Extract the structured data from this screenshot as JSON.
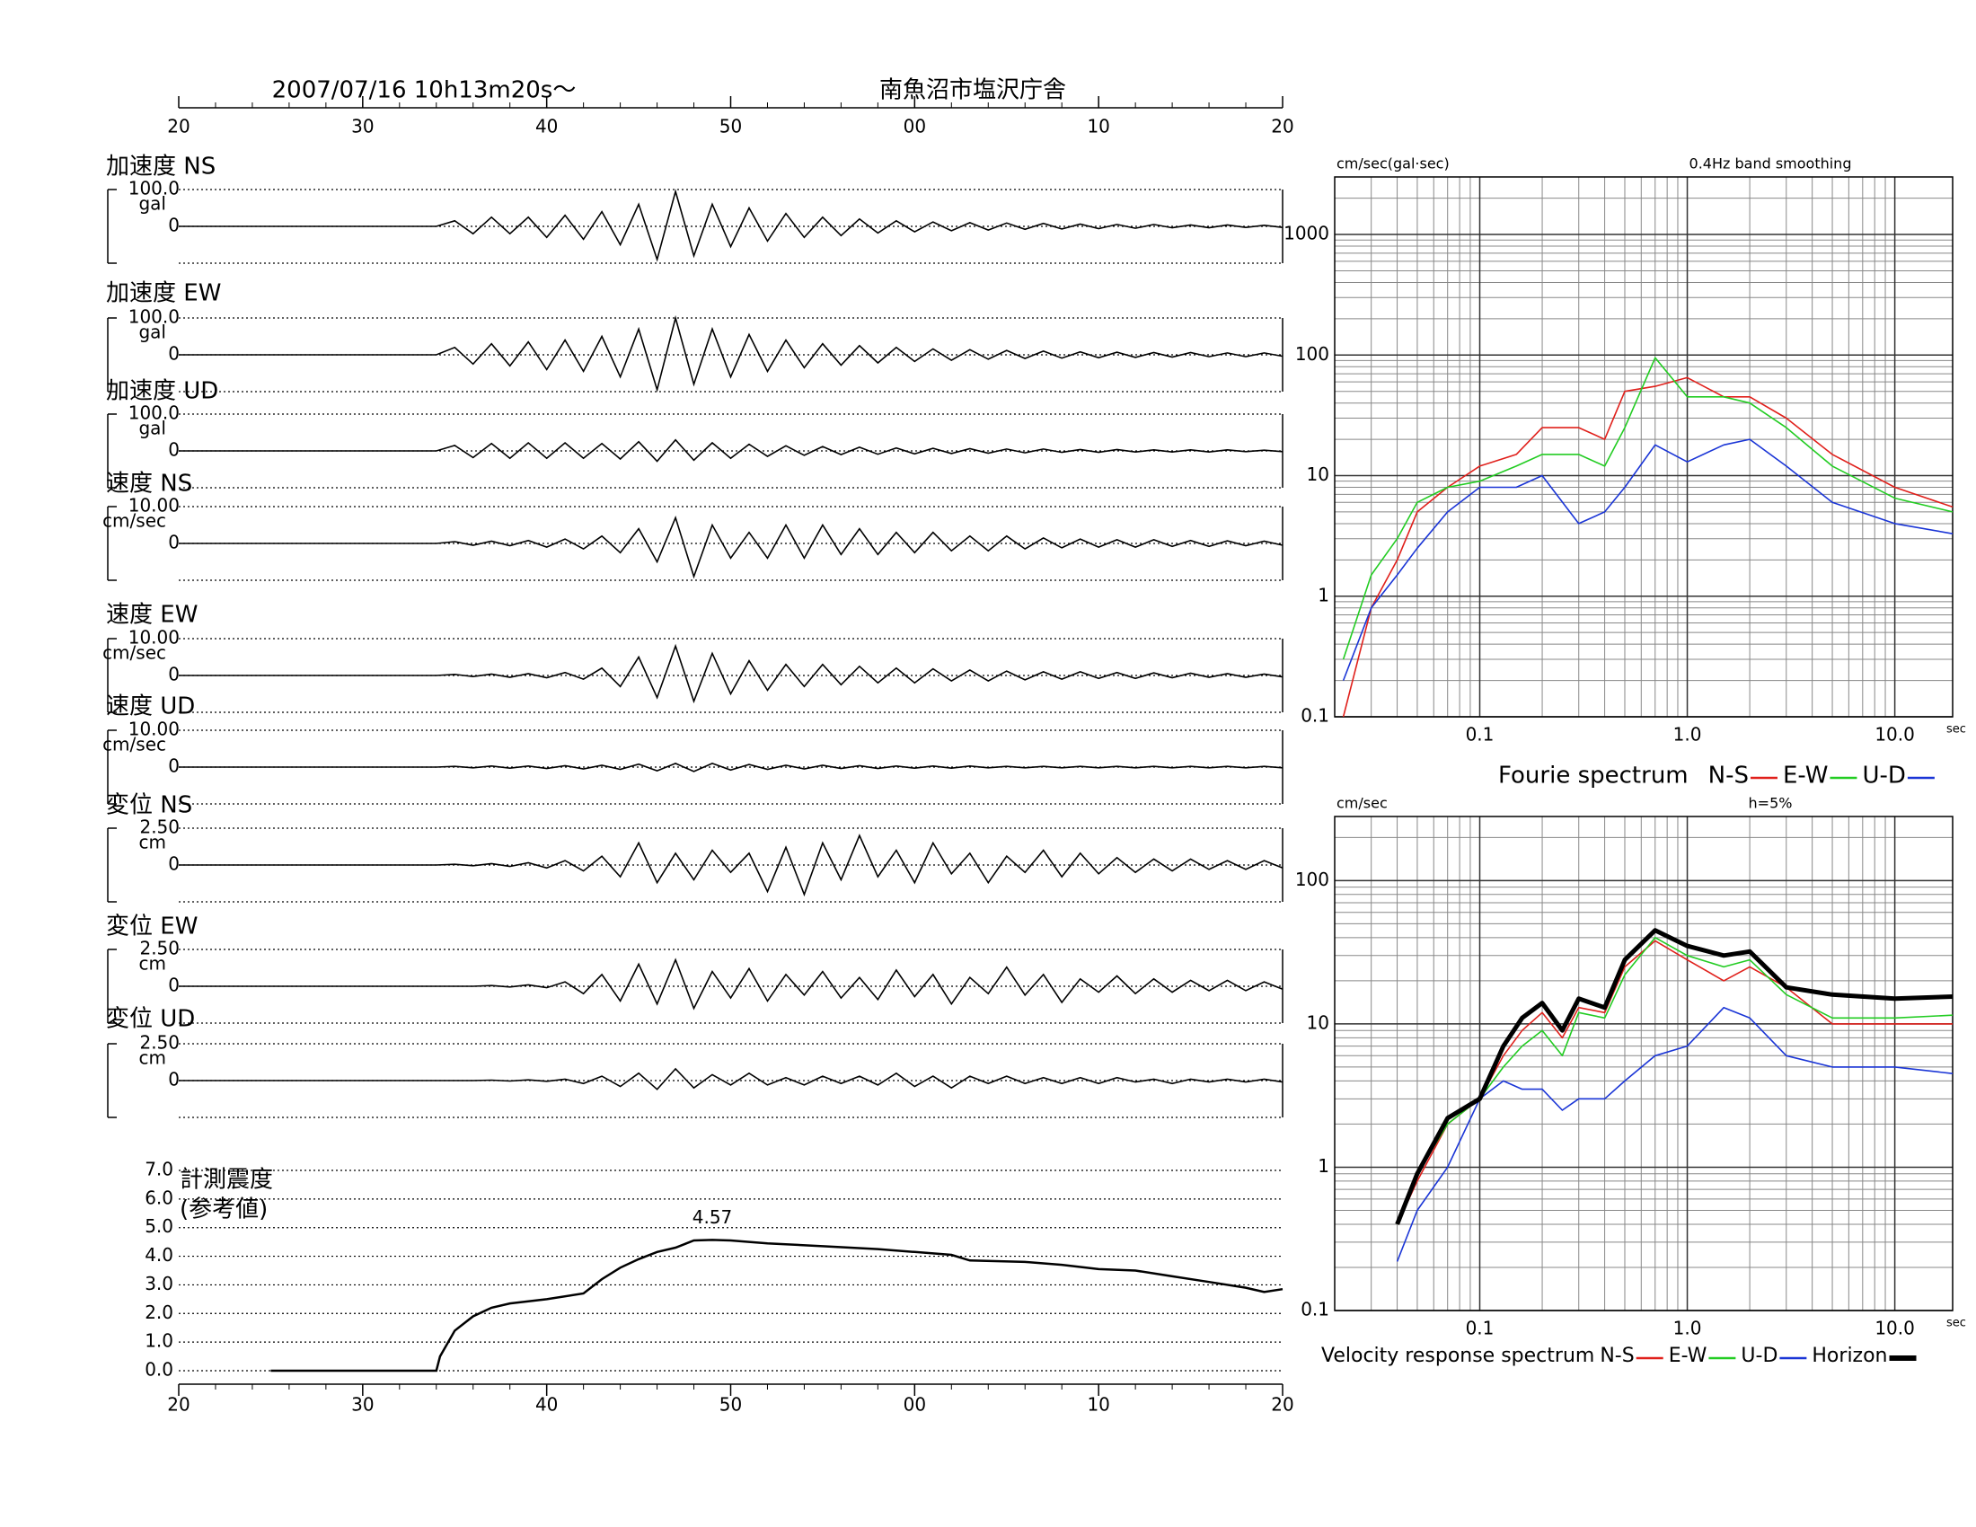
{
  "chart_data": [
    {
      "type": "line",
      "title": "2007/07/16  10h13m20s〜",
      "subtitle": "南魚沼市塩沢庁舎",
      "xlim": [
        20,
        80
      ],
      "xticks": [
        20,
        30,
        40,
        50,
        {
          "value": 60,
          "label": "00"
        },
        {
          "value": 70,
          "label": "10"
        },
        {
          "value": 80,
          "label": "20"
        }
      ],
      "x": [
        20,
        34,
        35,
        36,
        37,
        38,
        39,
        40,
        41,
        42,
        43,
        44,
        45,
        46,
        47,
        48,
        49,
        50,
        51,
        52,
        53,
        54,
        55,
        56,
        57,
        58,
        59,
        60,
        61,
        62,
        63,
        64,
        65,
        66,
        67,
        68,
        69,
        70,
        71,
        72,
        73,
        74,
        75,
        76,
        77,
        78,
        79,
        80
      ],
      "series": [
        {
          "name": "加速度 NS",
          "unit": "gal",
          "color": "#000",
          "ylim": [
            -100,
            100
          ],
          "yticks": [
            {
              "value": 100,
              "label": "100.0"
            },
            0
          ],
          "values": [
            0,
            0,
            15,
            -20,
            25,
            -20,
            25,
            -30,
            30,
            -35,
            40,
            -50,
            60,
            -90,
            95,
            -80,
            60,
            -55,
            50,
            -40,
            35,
            -30,
            25,
            -25,
            20,
            -18,
            15,
            -15,
            12,
            -12,
            10,
            -10,
            9,
            -8,
            8,
            -7,
            6,
            -6,
            5,
            -5,
            5,
            -4,
            4,
            -4,
            4,
            -3,
            3,
            -3
          ]
        },
        {
          "name": "加速度 EW",
          "unit": "gal",
          "color": "#000",
          "ylim": [
            -100,
            100
          ],
          "yticks": [
            {
              "value": 100,
              "label": "100.0"
            },
            0
          ],
          "values": [
            0,
            0,
            20,
            -25,
            30,
            -30,
            35,
            -40,
            40,
            -45,
            50,
            -60,
            70,
            -95,
            100,
            -80,
            70,
            -60,
            55,
            -45,
            40,
            -35,
            30,
            -28,
            25,
            -22,
            20,
            -18,
            16,
            -15,
            14,
            -12,
            12,
            -10,
            10,
            -9,
            8,
            -8,
            7,
            -7,
            6,
            -6,
            6,
            -5,
            5,
            -5,
            5,
            -4
          ]
        },
        {
          "name": "加速度 UD",
          "unit": "gal",
          "color": "#000",
          "ylim": [
            -100,
            100
          ],
          "yticks": [
            {
              "value": 100,
              "label": "100.0"
            },
            0
          ],
          "values": [
            0,
            0,
            15,
            -18,
            20,
            -20,
            22,
            -20,
            22,
            -20,
            20,
            -22,
            25,
            -28,
            30,
            -25,
            22,
            -20,
            18,
            -15,
            14,
            -12,
            12,
            -10,
            10,
            -9,
            8,
            -8,
            7,
            -7,
            6,
            -6,
            5,
            -5,
            5,
            -4,
            4,
            -4,
            4,
            -3,
            3,
            -3,
            3,
            -3,
            3,
            -2,
            2,
            -2
          ]
        },
        {
          "name": "速度 NS",
          "unit": "cm/sec",
          "color": "#000",
          "ylim": [
            -10,
            10
          ],
          "yticks": [
            {
              "value": 10,
              "label": "10.00"
            },
            0
          ],
          "values": [
            0,
            0,
            0.5,
            -0.5,
            0.6,
            -0.6,
            0.8,
            -1,
            1.2,
            -1.5,
            2,
            -2.5,
            4,
            -5,
            7,
            -9,
            5,
            -4,
            3,
            -4,
            5,
            -4,
            5,
            -3,
            4,
            -3,
            3,
            -2.5,
            3,
            -2,
            2,
            -2,
            2,
            -1.5,
            1.5,
            -1.2,
            1.2,
            -1,
            1,
            -1,
            1,
            -0.8,
            0.8,
            -0.8,
            0.7,
            -0.6,
            0.6,
            -0.5
          ]
        },
        {
          "name": "速度 EW",
          "unit": "cm/sec",
          "color": "#000",
          "ylim": [
            -10,
            10
          ],
          "yticks": [
            {
              "value": 10,
              "label": "10.00"
            },
            0
          ],
          "values": [
            0,
            0,
            0.3,
            -0.3,
            0.4,
            -0.5,
            0.5,
            -0.6,
            0.8,
            -1,
            2,
            -3,
            5,
            -6,
            8,
            -7,
            6,
            -5,
            4,
            -4,
            3,
            -3,
            3,
            -2.5,
            2.5,
            -2,
            2,
            -2,
            1.8,
            -1.5,
            1.5,
            -1.5,
            1.2,
            -1.2,
            1,
            -1,
            1,
            -0.8,
            0.8,
            -0.8,
            0.7,
            -0.6,
            0.6,
            -0.5,
            0.5,
            -0.5,
            0.4,
            -0.4
          ]
        },
        {
          "name": "速度 UD",
          "unit": "cm/sec",
          "color": "#000",
          "ylim": [
            -10,
            10
          ],
          "yticks": [
            {
              "value": 10,
              "label": "10.00"
            },
            0
          ],
          "values": [
            0,
            0,
            0.2,
            -0.2,
            0.3,
            -0.3,
            0.3,
            -0.4,
            0.4,
            -0.5,
            0.5,
            -0.6,
            0.8,
            -1,
            1,
            -1.2,
            1,
            -0.8,
            0.7,
            -0.6,
            0.5,
            -0.5,
            0.5,
            -0.4,
            0.4,
            -0.4,
            0.3,
            -0.3,
            0.3,
            -0.3,
            0.3,
            -0.2,
            0.2,
            -0.2,
            0.2,
            -0.2,
            0.2,
            -0.2,
            0.2,
            -0.2,
            0.2,
            -0.2,
            0.2,
            -0.2,
            0.2,
            -0.2,
            0.2,
            -0.2
          ]
        },
        {
          "name": "変位 NS",
          "unit": "cm",
          "color": "#000",
          "ylim": [
            -2.5,
            2.5
          ],
          "yticks": [
            {
              "value": 2.5,
              "label": "2.50"
            },
            0
          ],
          "values": [
            0,
            0,
            0.05,
            -0.05,
            0.1,
            -0.1,
            0.15,
            -0.2,
            0.3,
            -0.4,
            0.6,
            -0.8,
            1.5,
            -1.2,
            0.8,
            -1,
            1,
            -0.5,
            0.8,
            -1.8,
            1.2,
            -2,
            1.5,
            -1,
            2,
            -0.8,
            1,
            -1.2,
            1.5,
            -0.6,
            0.8,
            -1.2,
            0.6,
            -0.5,
            1,
            -0.8,
            0.8,
            -0.6,
            0.5,
            -0.5,
            0.4,
            -0.4,
            0.4,
            -0.3,
            0.3,
            -0.3,
            0.3,
            -0.2
          ]
        },
        {
          "name": "変位 EW",
          "unit": "cm",
          "color": "#000",
          "ylim": [
            -2.5,
            2.5
          ],
          "yticks": [
            {
              "value": 2.5,
              "label": "2.50"
            },
            0
          ],
          "values": [
            0,
            0,
            0,
            0,
            0.05,
            -0.05,
            0.1,
            -0.1,
            0.3,
            -0.5,
            0.8,
            -1,
            1.5,
            -1.2,
            1.8,
            -1.5,
            1,
            -0.8,
            1.2,
            -1,
            0.8,
            -0.6,
            1,
            -0.8,
            0.6,
            -0.9,
            1.1,
            -0.7,
            0.8,
            -1.2,
            0.6,
            -0.5,
            1.3,
            -0.6,
            0.8,
            -1.1,
            0.5,
            -0.4,
            0.7,
            -0.5,
            0.5,
            -0.4,
            0.4,
            -0.3,
            0.4,
            -0.3,
            0.3,
            -0.2
          ]
        },
        {
          "name": "変位 UD",
          "unit": "cm",
          "color": "#000",
          "ylim": [
            -2.5,
            2.5
          ],
          "yticks": [
            {
              "value": 2.5,
              "label": "2.50"
            },
            0
          ],
          "values": [
            0,
            0,
            0,
            0,
            0.03,
            -0.03,
            0.05,
            -0.05,
            0.1,
            -0.2,
            0.3,
            -0.4,
            0.5,
            -0.6,
            0.8,
            -0.5,
            0.4,
            -0.3,
            0.5,
            -0.3,
            0.2,
            -0.3,
            0.3,
            -0.2,
            0.3,
            -0.3,
            0.5,
            -0.4,
            0.3,
            -0.5,
            0.3,
            -0.2,
            0.3,
            -0.2,
            0.2,
            -0.2,
            0.2,
            -0.2,
            0.2,
            -0.1,
            0.1,
            -0.2,
            0.1,
            -0.1,
            0.1,
            -0.1,
            0.1,
            -0.1
          ]
        }
      ]
    },
    {
      "type": "line",
      "title": "計測震度",
      "subtitle": "(参考値)",
      "color": "#000",
      "xlim": [
        20,
        80
      ],
      "xticks": [
        20,
        30,
        40,
        50,
        {
          "value": 60,
          "label": "00"
        },
        {
          "value": 70,
          "label": "10"
        },
        {
          "value": 80,
          "label": "20"
        }
      ],
      "ylim": [
        0,
        7
      ],
      "yticks": [
        {
          "value": 0,
          "label": "0.0"
        },
        {
          "value": 1,
          "label": "1.0"
        },
        {
          "value": 2,
          "label": "2.0"
        },
        {
          "value": 3,
          "label": "3.0"
        },
        {
          "value": 4,
          "label": "4.0"
        },
        {
          "value": 5,
          "label": "5.0"
        },
        {
          "value": 6,
          "label": "6.0"
        },
        {
          "value": 7,
          "label": "7.0"
        }
      ],
      "grid": true,
      "labeled_point": 15,
      "x": [
        25,
        34,
        34.2,
        35,
        36,
        37,
        38,
        40,
        42,
        43,
        44,
        45,
        46,
        47,
        48,
        49,
        50,
        52,
        55,
        58,
        60,
        62,
        63,
        66,
        68,
        70,
        72,
        74,
        76,
        78,
        79,
        80
      ],
      "values": [
        0,
        0,
        0.5,
        1.4,
        1.9,
        2.2,
        2.35,
        2.5,
        2.7,
        3.2,
        3.6,
        3.9,
        4.15,
        4.3,
        4.55,
        4.57,
        4.55,
        4.45,
        4.35,
        4.25,
        4.15,
        4.05,
        3.85,
        3.8,
        3.7,
        3.55,
        3.5,
        3.3,
        3.1,
        2.9,
        2.75,
        2.85
      ]
    },
    {
      "type": "line",
      "title": "Fourie spectrum",
      "ylabel": "cm/sec(gal·sec)",
      "annotation": "0.4Hz band smoothing",
      "xlabel": "sec",
      "xlog": true,
      "ylog": true,
      "grid": true,
      "xlim": [
        0.02,
        19
      ],
      "xticks": [
        0.1,
        {
          "value": 1,
          "label": "1.0"
        },
        {
          "value": 10,
          "label": "10.0"
        }
      ],
      "ylim": [
        0.1,
        3000
      ],
      "yticks": [
        0.1,
        1,
        10,
        100,
        1000
      ],
      "x": [
        0.022,
        0.03,
        0.04,
        0.05,
        0.07,
        0.1,
        0.15,
        0.2,
        0.3,
        0.4,
        0.5,
        0.7,
        1,
        1.5,
        2,
        3,
        5,
        10,
        19
      ],
      "series": [
        {
          "name": "N-S",
          "color": "#e0201b",
          "linewidth": 1.6,
          "values": [
            0.1,
            0.8,
            2,
            5,
            8,
            12,
            15,
            25,
            25,
            20,
            50,
            55,
            65,
            45,
            45,
            30,
            15,
            8,
            5.5
          ]
        },
        {
          "name": "E-W",
          "color": "#22cc22",
          "linewidth": 1.6,
          "values": [
            0.3,
            1.5,
            3,
            6,
            8,
            9,
            12,
            15,
            15,
            12,
            25,
            95,
            45,
            45,
            40,
            25,
            12,
            6.5,
            5
          ]
        },
        {
          "name": "U-D",
          "color": "#1a35d6",
          "linewidth": 1.6,
          "values": [
            0.2,
            0.8,
            1.5,
            2.5,
            5,
            8,
            8,
            10,
            4,
            5,
            8,
            18,
            13,
            18,
            20,
            12,
            6,
            4,
            3.3
          ]
        }
      ]
    },
    {
      "type": "line",
      "title": "Velocity response spectrum",
      "ylabel": "cm/sec",
      "annotation": "h=5%",
      "xlabel": "sec",
      "xlog": true,
      "ylog": true,
      "grid": true,
      "xlim": [
        0.02,
        19
      ],
      "xticks": [
        0.1,
        {
          "value": 1,
          "label": "1.0"
        },
        {
          "value": 10,
          "label": "10.0"
        }
      ],
      "ylim": [
        0.1,
        280
      ],
      "yticks": [
        0.1,
        1,
        10,
        100
      ],
      "x": [
        0.04,
        0.05,
        0.07,
        0.1,
        0.13,
        0.16,
        0.2,
        0.25,
        0.3,
        0.4,
        0.5,
        0.7,
        1,
        1.5,
        2,
        3,
        5,
        10,
        19
      ],
      "series": [
        {
          "name": "N-S",
          "color": "#e0201b",
          "linewidth": 1.6,
          "values": [
            0.4,
            0.8,
            2,
            3,
            6,
            9,
            12,
            8,
            13,
            12,
            25,
            38,
            28,
            20,
            25,
            18,
            10,
            10,
            10
          ]
        },
        {
          "name": "E-W",
          "color": "#22cc22",
          "linewidth": 1.6,
          "values": [
            0.4,
            0.9,
            2,
            3,
            5,
            7,
            9,
            6,
            12,
            11,
            22,
            40,
            30,
            25,
            28,
            16,
            11,
            11,
            11.5
          ]
        },
        {
          "name": "U-D",
          "color": "#1a35d6",
          "linewidth": 1.6,
          "values": [
            0.22,
            0.5,
            1,
            3,
            4,
            3.5,
            3.5,
            2.5,
            3,
            3,
            4,
            6,
            7,
            13,
            11,
            6,
            5,
            5,
            4.5
          ]
        },
        {
          "name": "Horizon",
          "color": "#000",
          "linewidth": 5,
          "values": [
            0.4,
            0.9,
            2.2,
            3,
            7,
            11,
            14,
            9,
            15,
            13,
            28,
            45,
            35,
            30,
            32,
            18,
            16,
            15,
            15.5
          ]
        }
      ]
    }
  ]
}
